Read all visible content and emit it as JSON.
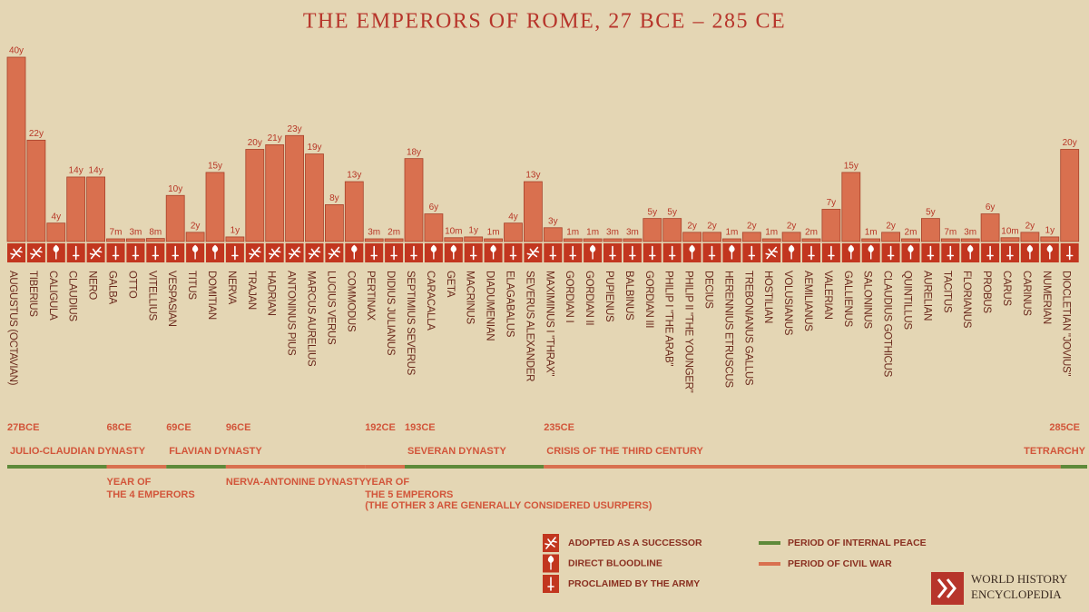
{
  "chart_data": {
    "type": "bar",
    "title": "THE EMPERORS OF ROME, 27 BCE – 285 CE",
    "color": "#d9704f",
    "strip_color": "#c2361f",
    "categories": [
      "AUGUSTUS (OCTAVIAN)",
      "TIBERIUS",
      "CALIGULA",
      "CLAUDIUS",
      "NERO",
      "GALBA",
      "OTTO",
      "VITELLIUS",
      "VESPASIAN",
      "TITUS",
      "DOMITIAN",
      "NERVA",
      "TRAJAN",
      "HADRIAN",
      "ANTONINUS PIUS",
      "MARCUS AURELIUS",
      "LUCIUS VERUS",
      "COMMODUS",
      "PERTINAX",
      "DIDIUS JULIANUS",
      "SEPTIMIUS SEVERUS",
      "CARACALLA",
      "GETA",
      "MACRINUS",
      "DIADUMENIAN",
      "ELAGABALUS",
      "SEVERUS ALEXANDER",
      "MAXIMINUS I \"THRAX\"",
      "GORDIAN I",
      "GORDIAN II",
      "PUPIENUS",
      "BALBINUS",
      "GORDIAN III",
      "PHILIP I \"THE ARAB\"",
      "PHILIP II \"THE YOUNGER\"",
      "DECIUS",
      "HERENNIUS ETRUSCUS",
      "TREBONIANUS GALLUS",
      "HOSTILIAN",
      "VOLUSIANUS",
      "AEMILIANUS",
      "VALERIAN",
      "GALLIENUS",
      "SALONINUS",
      "CLAUDIUS GOTHICUS",
      "QUINTILLUS",
      "AURELIAN",
      "TACITUS",
      "FLORIANUS",
      "PROBUS",
      "CARUS",
      "CARINUS",
      "NUMERIAN",
      "DIOCLETIAN \"JOVIUS\""
    ],
    "values": [
      40,
      22,
      4,
      14,
      14,
      0.583,
      0.25,
      0.667,
      10,
      2,
      15,
      1,
      20,
      21,
      23,
      19,
      8,
      13,
      0.25,
      0.167,
      18,
      6,
      0.833,
      1,
      0.083,
      4,
      13,
      3,
      0.083,
      0.083,
      0.25,
      0.25,
      5,
      5,
      2,
      2,
      0.083,
      2,
      0.083,
      2,
      0.167,
      7,
      15,
      0.083,
      2,
      0.167,
      5,
      0.583,
      0.25,
      6,
      0.833,
      2,
      1,
      20
    ],
    "value_labels": [
      "40y",
      "22y",
      "4y",
      "14y",
      "14y",
      "7m",
      "3m",
      "8m",
      "10y",
      "2y",
      "15y",
      "1y",
      "20y",
      "21y",
      "23y",
      "19y",
      "8y",
      "13y",
      "3m",
      "2m",
      "18y",
      "6y",
      "10m",
      "1y",
      "1m",
      "4y",
      "13y",
      "3y",
      "1m",
      "1m",
      "3m",
      "3m",
      "5y",
      "5y",
      "2y",
      "2y",
      "1m",
      "2y",
      "1m",
      "2y",
      "2m",
      "7y",
      "15y",
      "1m",
      "2y",
      "2m",
      "5y",
      "7m",
      "3m",
      "6y",
      "10m",
      "2y",
      "1y",
      "20y"
    ],
    "methods": [
      0,
      0,
      1,
      2,
      0,
      2,
      2,
      2,
      2,
      1,
      1,
      2,
      0,
      0,
      0,
      0,
      0,
      1,
      2,
      2,
      2,
      1,
      1,
      2,
      1,
      2,
      0,
      2,
      2,
      1,
      2,
      2,
      2,
      2,
      1,
      2,
      1,
      2,
      0,
      1,
      2,
      2,
      1,
      1,
      2,
      1,
      2,
      2,
      1,
      2,
      2,
      1,
      1,
      2
    ],
    "legend": [
      "ADOPTED AS A SUCCESSOR",
      "DIRECT BLOODLINE",
      "PROCLAIMED BY THE ARMY"
    ],
    "timeline_legend": [
      {
        "name": "PERIOD OF INTERNAL PEACE",
        "color": "#5e8a3a"
      },
      {
        "name": "PERIOD OF CIVIL WAR",
        "color": "#d9704f"
      }
    ],
    "periods": [
      {
        "name": "JULIO-CLAUDIAN DYNASTY",
        "start_label": "27BCE",
        "first": 0,
        "last": 4,
        "kind": 0
      },
      {
        "name": "YEAR OF",
        "name2": "THE 4 EMPERORS",
        "start_label": "68CE",
        "first": 5,
        "last": 7,
        "kind": 1
      },
      {
        "name": "FLAVIAN DYNASTY",
        "start_label": "69CE",
        "first": 8,
        "last": 10,
        "kind": 0
      },
      {
        "name": "NERVA-ANTONINE DYNASTY",
        "start_label": "96CE",
        "first": 11,
        "last": 17,
        "kind": 1
      },
      {
        "name": "YEAR OF",
        "name2": "THE 5 EMPERORS",
        "note": "(THE OTHER 3 ARE GENERALLY CONSIDERED USURPERS)",
        "start_label": "192CE",
        "first": 18,
        "last": 19,
        "kind": 1
      },
      {
        "name": "SEVERAN DYNASTY",
        "start_label": "193CE",
        "first": 20,
        "last": 26,
        "kind": 0
      },
      {
        "name": "CRISIS OF THE THIRD CENTURY",
        "start_label": "235CE",
        "first": 27,
        "last": 52,
        "kind": 1
      },
      {
        "name": "TETRARCHY",
        "start_label": "285CE",
        "first": 53,
        "last": 53,
        "kind": 0
      }
    ],
    "publisher": [
      "WORLD HISTORY",
      "ENCYCLOPEDIA"
    ]
  }
}
